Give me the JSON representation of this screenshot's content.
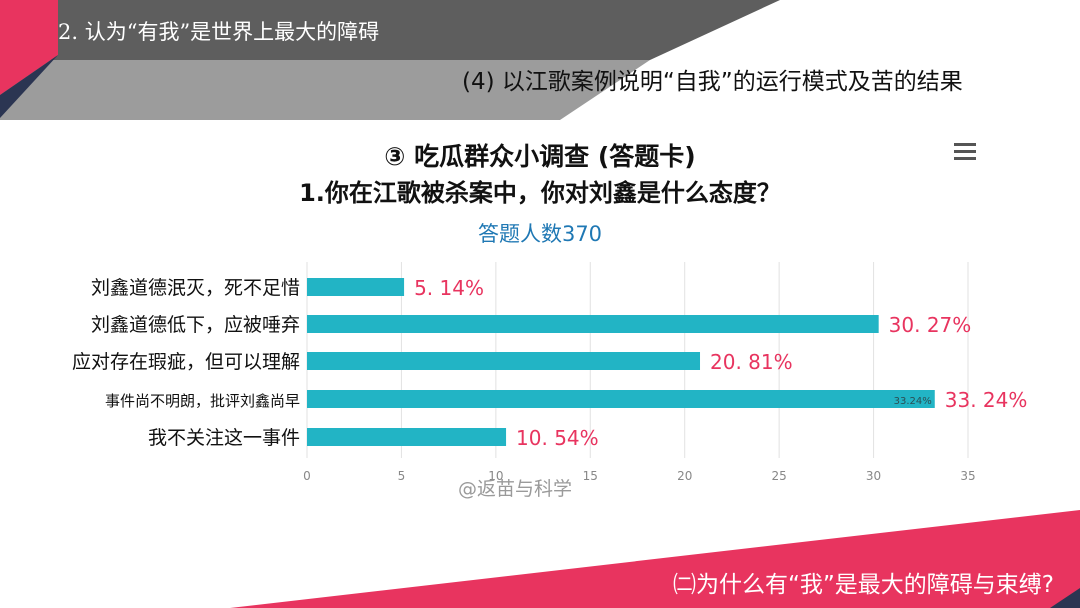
{
  "slide": {
    "section_title": "2. 认为“有我”是世界上最大的障碍",
    "subtitle": "(4) 以江歌案例说明“自我”的运行模式及苦的结果",
    "footer_question": "㈡为什么有“我”是最大的障碍与束缚?",
    "watermark": "@返苗与科学",
    "colors": {
      "accent_pink": "#e8345f",
      "dark_band": "#5b5b5b",
      "navy": "#2b3552",
      "bar": "#22b4c5",
      "label_pink": "#e8345f"
    },
    "menu_icon": "hamburger-menu-icon"
  },
  "chart_data": {
    "type": "bar",
    "orientation": "horizontal",
    "title": "③ 吃瓜群众小调查 (答题卡)",
    "question": "1.你在江歌被杀案中，你对刘鑫是什么态度？",
    "summary": "答题人数370",
    "categories": [
      "刘鑫道德泯灭，死不足惜",
      "刘鑫道德低下，应被唾弃",
      "应对存在瑕疵，但可以理解",
      "事件尚不明朗，批评刘鑫尚早",
      "我不关注这一事件"
    ],
    "values": [
      5.14,
      30.27,
      20.81,
      33.24,
      10.54
    ],
    "value_labels": [
      "5. 14%",
      "30. 27%",
      "20. 81%",
      "33. 24%",
      "10. 54%"
    ],
    "inner_label": "33.24%",
    "xlim": [
      0,
      35
    ],
    "xticks": [
      "0",
      "5",
      "10",
      "15",
      "20",
      "25",
      "30",
      "35"
    ],
    "grid": true,
    "legend": "none"
  }
}
